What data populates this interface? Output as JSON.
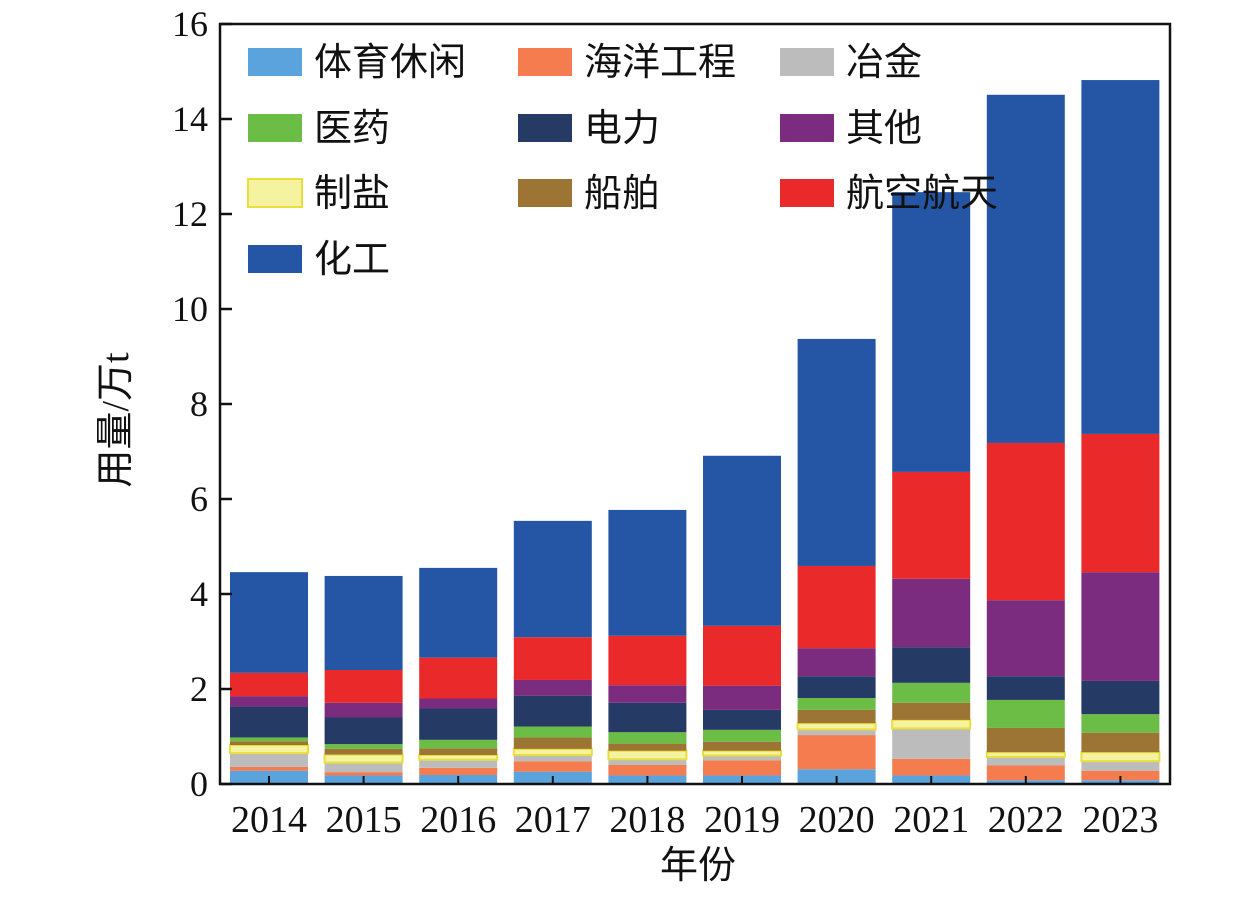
{
  "chart_data": {
    "type": "bar",
    "stacked": true,
    "xlabel": "年份",
    "ylabel": "用量/万t",
    "ylim": [
      0,
      16
    ],
    "yticks": [
      0,
      2,
      4,
      6,
      8,
      10,
      12,
      14,
      16
    ],
    "grid": false,
    "legend_position": "top-left",
    "categories": [
      "2014",
      "2015",
      "2016",
      "2017",
      "2018",
      "2019",
      "2020",
      "2021",
      "2022",
      "2023"
    ],
    "series": [
      {
        "name": "体育休闲",
        "color": "#5ba3dc",
        "values": [
          0.28,
          0.18,
          0.19,
          0.26,
          0.18,
          0.18,
          0.31,
          0.18,
          0.08,
          0.08
        ]
      },
      {
        "name": "海洋工程",
        "color": "#f47c4e",
        "values": [
          0.08,
          0.07,
          0.15,
          0.22,
          0.22,
          0.32,
          0.72,
          0.35,
          0.31,
          0.2
        ]
      },
      {
        "name": "冶金",
        "color": "#bcbcbc",
        "values": [
          0.29,
          0.2,
          0.17,
          0.13,
          0.12,
          0.1,
          0.12,
          0.64,
          0.18,
          0.2
        ]
      },
      {
        "name": "制盐",
        "color": "#f5f2a0",
        "values": [
          0.17,
          0.17,
          0.1,
          0.13,
          0.18,
          0.1,
          0.13,
          0.18,
          0.1,
          0.19
        ]
      },
      {
        "name": "船舶",
        "color": "#9c7535",
        "values": [
          0.08,
          0.12,
          0.14,
          0.24,
          0.15,
          0.19,
          0.28,
          0.36,
          0.51,
          0.41
        ]
      },
      {
        "name": "医药",
        "color": "#6bbd45",
        "values": [
          0.08,
          0.1,
          0.18,
          0.23,
          0.24,
          0.25,
          0.25,
          0.42,
          0.59,
          0.39
        ]
      },
      {
        "name": "电力",
        "color": "#253b66",
        "values": [
          0.65,
          0.56,
          0.66,
          0.65,
          0.62,
          0.42,
          0.46,
          0.75,
          0.5,
          0.7
        ]
      },
      {
        "name": "其他",
        "color": "#7b2c7f",
        "values": [
          0.22,
          0.31,
          0.21,
          0.33,
          0.37,
          0.51,
          0.59,
          1.44,
          1.6,
          2.29
        ]
      },
      {
        "name": "航空航天",
        "color": "#ea2a2a",
        "values": [
          0.49,
          0.69,
          0.86,
          0.9,
          1.04,
          1.26,
          1.73,
          2.25,
          3.31,
          2.91
        ]
      },
      {
        "name": "化工",
        "color": "#2556a5",
        "values": [
          2.12,
          1.98,
          1.89,
          2.45,
          2.65,
          3.58,
          4.78,
          5.89,
          7.33,
          7.45
        ]
      }
    ],
    "legend_order": [
      "体育休闲",
      "海洋工程",
      "冶金",
      "医药",
      "电力",
      "其他",
      "制盐",
      "船舶",
      "航空航天",
      "化工"
    ]
  }
}
